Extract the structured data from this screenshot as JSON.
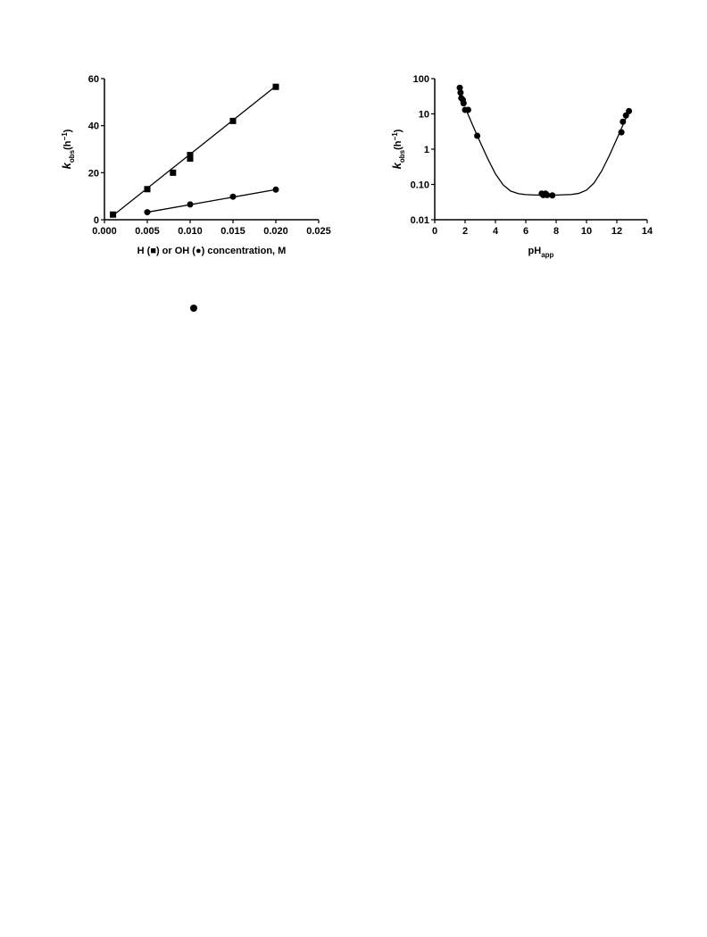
{
  "chart_data": [
    {
      "type": "scatter",
      "xlabel": [
        {
          "text": "H (■) or OH (●) concentration, M"
        }
      ],
      "ylabel": [
        {
          "text": "k",
          "style": "italic"
        },
        {
          "text": "obs",
          "style": "sub"
        },
        {
          "text": "(h"
        },
        {
          "text": "−1",
          "style": "super"
        },
        {
          "text": ")"
        }
      ],
      "xlim": [
        0,
        0.025
      ],
      "xticks": [
        {
          "value": 0,
          "label": "0.000"
        },
        {
          "value": 0.005,
          "label": "0.005"
        },
        {
          "value": 0.01,
          "label": "0.010"
        },
        {
          "value": 0.015,
          "label": "0.015"
        },
        {
          "value": 0.02,
          "label": "0.020"
        },
        {
          "value": 0.025,
          "label": "0.025"
        }
      ],
      "ylim": [
        0,
        60
      ],
      "yticks": [
        0,
        20,
        40,
        60
      ],
      "series": [
        {
          "style": "square",
          "color": "#000000",
          "x": [
            0.001,
            0.005,
            0.008,
            0.01,
            0.01,
            0.015,
            0.02
          ],
          "values": [
            2.2,
            13,
            20,
            26,
            27.5,
            42,
            56.5
          ]
        },
        {
          "style": "line",
          "color": "#000000",
          "x": [
            0.001,
            0.02
          ],
          "values": [
            1.8,
            56.8
          ]
        },
        {
          "style": "circle",
          "color": "#000000",
          "x": [
            0.005,
            0.01,
            0.015,
            0.02
          ],
          "values": [
            3.2,
            6.5,
            9.8,
            12.8
          ]
        },
        {
          "style": "line",
          "color": "#000000",
          "x": [
            0.005,
            0.02
          ],
          "values": [
            3.2,
            12.8
          ]
        }
      ]
    },
    {
      "type": "scatter",
      "yscale": "log",
      "xlabel": [
        {
          "text": "pH"
        },
        {
          "text": "app",
          "style": "sub"
        }
      ],
      "ylabel": [
        {
          "text": "k",
          "style": "italic"
        },
        {
          "text": "obs",
          "style": "sub"
        },
        {
          "text": "(h"
        },
        {
          "text": "−1",
          "style": "super"
        },
        {
          "text": ")"
        }
      ],
      "xlim": [
        0,
        14
      ],
      "xticks": [
        0,
        2,
        4,
        6,
        8,
        10,
        12,
        14
      ],
      "ylim": [
        0.01,
        100
      ],
      "yticks": [
        0.01,
        {
          "value": 0.1,
          "label": "0.10"
        },
        1,
        10,
        100
      ],
      "series": [
        {
          "style": "circle",
          "color": "#000000",
          "x": [
            1.65,
            1.7,
            1.75,
            1.85,
            1.9,
            2.0,
            2.2,
            2.8,
            7.05,
            7.15,
            7.25,
            7.3,
            7.4,
            7.75,
            12.3,
            12.4,
            12.6,
            12.8
          ],
          "values": [
            55,
            40,
            28,
            25,
            20,
            13,
            13,
            2.4,
            0.055,
            0.05,
            0.052,
            0.055,
            0.05,
            0.049,
            3,
            6,
            9,
            12
          ]
        },
        {
          "style": "line",
          "color": "#000000",
          "x": [
            2.0,
            2.5,
            3,
            3.5,
            4,
            4.5,
            5,
            5.5,
            6,
            6.5,
            7,
            8,
            9,
            9.5,
            10,
            10.5,
            11,
            11.5,
            12,
            12.5,
            12.8
          ],
          "values": [
            15.1,
            4.78,
            1.56,
            0.53,
            0.2,
            0.098,
            0.065,
            0.055,
            0.0515,
            0.0505,
            0.05,
            0.05,
            0.052,
            0.056,
            0.069,
            0.11,
            0.24,
            0.65,
            1.95,
            6.05,
            12.05
          ]
        }
      ]
    }
  ]
}
